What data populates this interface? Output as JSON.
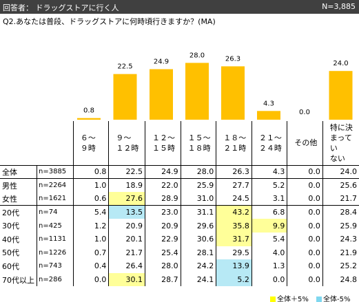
{
  "header": {
    "respondents": "回答者： ドラッグストアに行く人",
    "n_total": "N=3,885"
  },
  "question": "Q2.あなたは普段、ドラッグストアに何時頃行きますか？(MA)",
  "chart_data": {
    "type": "bar",
    "categories": [
      "６～９時",
      "９～１２時",
      "１２～１５時",
      "１５～１８時",
      "１８～２１時",
      "２１～２４時",
      "その他",
      "特に決まっていない"
    ],
    "values": [
      0.8,
      22.5,
      24.9,
      28.0,
      26.3,
      4.3,
      0.0,
      24.0
    ],
    "value_labels": [
      "0.8",
      "22.5",
      "24.9",
      "28.0",
      "26.3",
      "4.3",
      "0.0",
      "24.0"
    ],
    "bar_color": "#ffc000",
    "ylim": [
      0,
      30
    ]
  },
  "table": {
    "column_headers": [
      [
        "６～",
        "９時"
      ],
      [
        "９～",
        "１２時"
      ],
      [
        "１２～",
        "１５時"
      ],
      [
        "１５～",
        "１８時"
      ],
      [
        "１８～",
        "２１時"
      ],
      [
        "２１～",
        "２４時"
      ],
      [
        "その他"
      ],
      [
        "特に決",
        "まってい",
        "ない"
      ]
    ],
    "rows": [
      {
        "label": "全体",
        "n": "n=3885",
        "values": [
          "0.8",
          "22.5",
          "24.9",
          "28.0",
          "26.3",
          "4.3",
          "0.0",
          "24.0"
        ],
        "flags": [
          "",
          "",
          "",
          "",
          "",
          "",
          "",
          ""
        ],
        "group_end": true
      },
      {
        "label": "男性",
        "n": "n=2264",
        "values": [
          "1.0",
          "18.9",
          "22.0",
          "25.9",
          "27.7",
          "5.2",
          "0.0",
          "25.6"
        ],
        "flags": [
          "",
          "",
          "",
          "",
          "",
          "",
          "",
          ""
        ],
        "group_end": false
      },
      {
        "label": "女性",
        "n": "n=1621",
        "values": [
          "0.6",
          "27.6",
          "28.9",
          "31.0",
          "24.5",
          "3.1",
          "0.0",
          "21.7"
        ],
        "flags": [
          "",
          "hi",
          "",
          "",
          "",
          "",
          "",
          ""
        ],
        "group_end": true
      },
      {
        "label": "20代",
        "n": "n=74",
        "values": [
          "5.4",
          "13.5",
          "23.0",
          "31.1",
          "43.2",
          "6.8",
          "0.0",
          "28.4"
        ],
        "flags": [
          "",
          "lo",
          "",
          "",
          "hi",
          "",
          "",
          ""
        ],
        "group_end": false
      },
      {
        "label": "30代",
        "n": "n=425",
        "values": [
          "1.2",
          "20.9",
          "20.9",
          "29.6",
          "35.8",
          "9.9",
          "0.0",
          "25.9"
        ],
        "flags": [
          "",
          "",
          "",
          "",
          "hi",
          "hi",
          "",
          ""
        ],
        "group_end": false
      },
      {
        "label": "40代",
        "n": "n=1131",
        "values": [
          "1.0",
          "20.1",
          "22.9",
          "30.6",
          "31.7",
          "5.4",
          "0.0",
          "24.3"
        ],
        "flags": [
          "",
          "",
          "",
          "",
          "hi",
          "",
          "",
          ""
        ],
        "group_end": false
      },
      {
        "label": "50代",
        "n": "n=1226",
        "values": [
          "0.7",
          "21.7",
          "25.4",
          "28.1",
          "29.5",
          "4.0",
          "0.0",
          "21.9"
        ],
        "flags": [
          "",
          "",
          "",
          "",
          "",
          "",
          "",
          ""
        ],
        "group_end": false
      },
      {
        "label": "60代",
        "n": "n=743",
        "values": [
          "0.4",
          "26.4",
          "28.0",
          "24.2",
          "13.9",
          "1.3",
          "0.0",
          "25.2"
        ],
        "flags": [
          "",
          "",
          "",
          "",
          "lo",
          "",
          "",
          ""
        ],
        "group_end": false
      },
      {
        "label": "70代以上",
        "n": "n=286",
        "values": [
          "0.0",
          "30.1",
          "28.7",
          "24.1",
          "5.2",
          "0.0",
          "0.0",
          "24.8"
        ],
        "flags": [
          "",
          "hi",
          "",
          "",
          "lo",
          "",
          "",
          ""
        ],
        "group_end": false
      }
    ]
  },
  "legend": {
    "high_label": "全体＋5%",
    "high_color": "#ffff00",
    "low_label": "全体-5%",
    "low_color": "#7fd7ef"
  }
}
